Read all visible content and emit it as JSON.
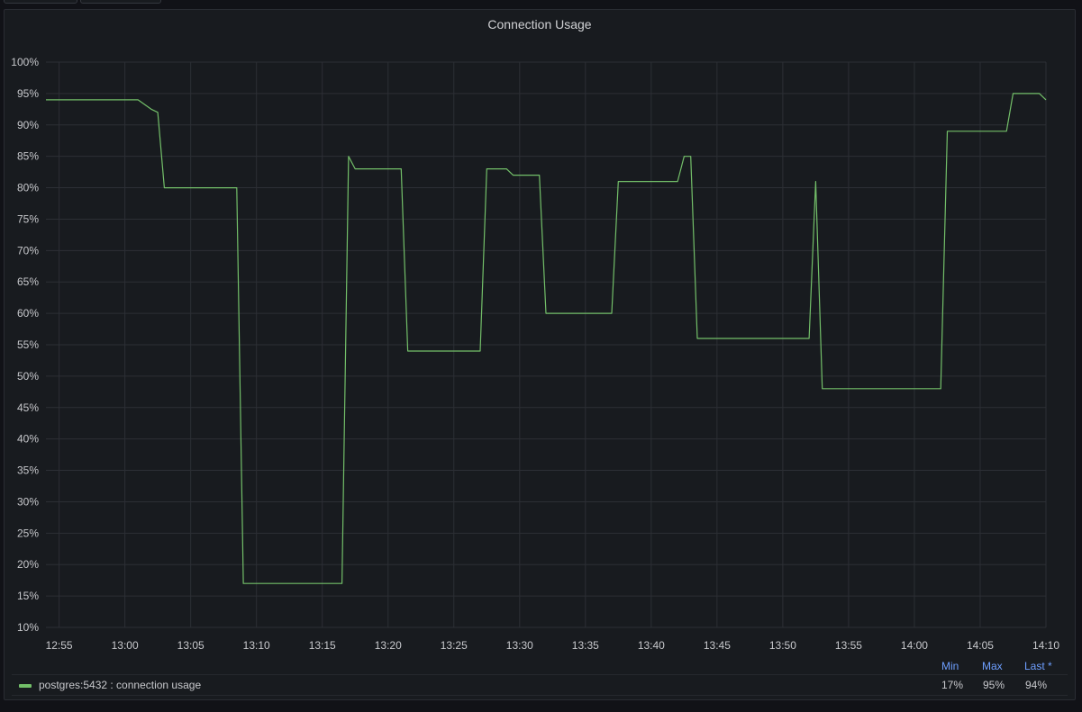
{
  "panel": {
    "title": "Connection Usage"
  },
  "colors": {
    "series": "#73bf69",
    "grid": "#2c2f35",
    "legend_header": "#6e9fff"
  },
  "legend": {
    "headers": {
      "min": "Min",
      "max": "Max",
      "last": "Last *"
    },
    "series_name": "postgres:5432 : connection usage",
    "min": "17%",
    "max": "95%",
    "last": "94%"
  },
  "chart_data": {
    "type": "line",
    "title": "Connection Usage",
    "xlabel": "",
    "ylabel": "",
    "x_unit": "time (HH:MM)",
    "xlim": [
      "12:54",
      "14:10"
    ],
    "ylim": [
      10,
      100
    ],
    "y_ticks": [
      "10%",
      "15%",
      "20%",
      "25%",
      "30%",
      "35%",
      "40%",
      "45%",
      "50%",
      "55%",
      "60%",
      "65%",
      "70%",
      "75%",
      "80%",
      "85%",
      "90%",
      "95%",
      "100%"
    ],
    "x_ticks": [
      "12:55",
      "13:00",
      "13:05",
      "13:10",
      "13:15",
      "13:20",
      "13:25",
      "13:30",
      "13:35",
      "13:40",
      "13:45",
      "13:50",
      "13:55",
      "14:00",
      "14:05",
      "14:10"
    ],
    "grid": true,
    "legend_position": "bottom",
    "series": [
      {
        "name": "postgres:5432 : connection usage",
        "color": "#73bf69",
        "points": [
          [
            "12:54",
            94
          ],
          [
            "13:01",
            94
          ],
          [
            "13:02",
            92.5
          ],
          [
            "13:02.5",
            92
          ],
          [
            "13:03",
            80
          ],
          [
            "13:08.5",
            80
          ],
          [
            "13:09",
            17
          ],
          [
            "13:16.5",
            17
          ],
          [
            "13:17",
            85
          ],
          [
            "13:17.5",
            83
          ],
          [
            "13:21",
            83
          ],
          [
            "13:21.5",
            54
          ],
          [
            "13:27",
            54
          ],
          [
            "13:27.5",
            83
          ],
          [
            "13:29",
            83
          ],
          [
            "13:29.5",
            82
          ],
          [
            "13:31.5",
            82
          ],
          [
            "13:32",
            60
          ],
          [
            "13:37",
            60
          ],
          [
            "13:37.5",
            81
          ],
          [
            "13:42",
            81
          ],
          [
            "13:42.5",
            85
          ],
          [
            "13:43",
            85
          ],
          [
            "13:43.5",
            56
          ],
          [
            "13:52",
            56
          ],
          [
            "13:52.5",
            81
          ],
          [
            "13:53",
            48
          ],
          [
            "14:02",
            48
          ],
          [
            "14:02.5",
            89
          ],
          [
            "14:07",
            89
          ],
          [
            "14:07.5",
            95
          ],
          [
            "14:09.5",
            95
          ],
          [
            "14:10",
            94
          ]
        ]
      }
    ]
  }
}
